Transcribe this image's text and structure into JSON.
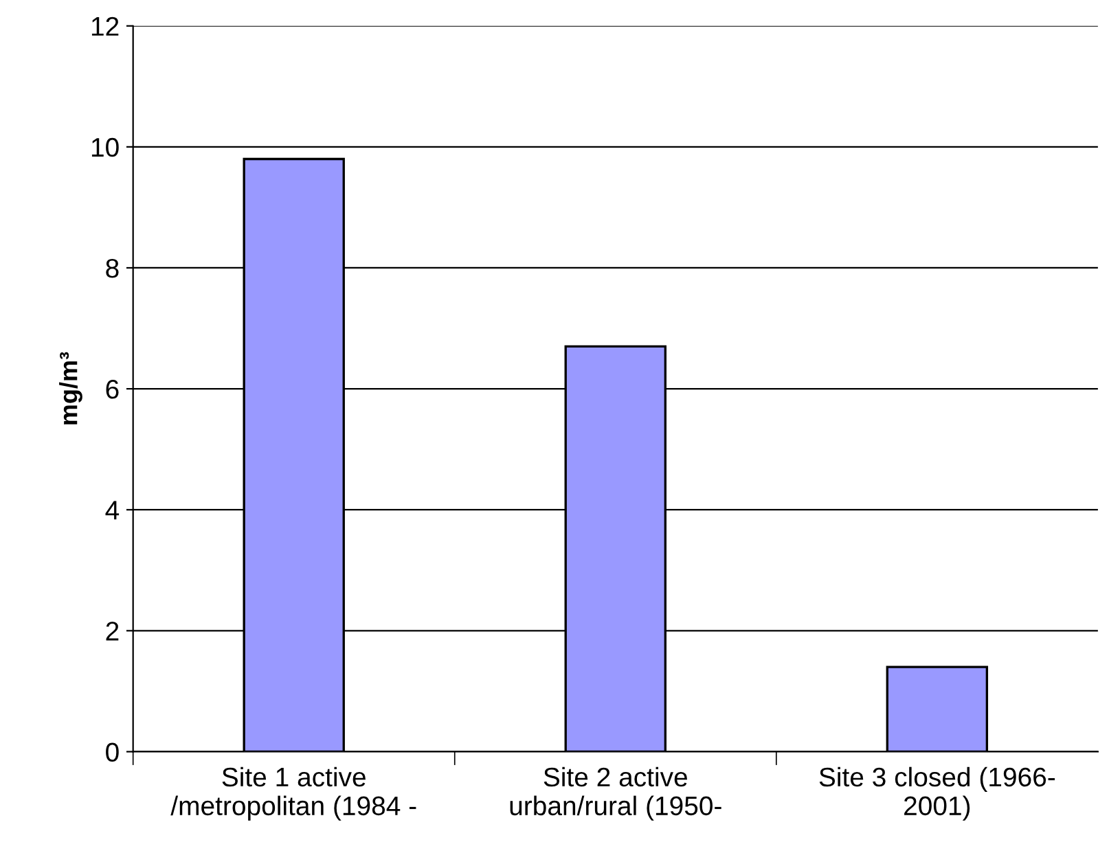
{
  "chart_data": {
    "type": "bar",
    "ylabel": "mg/m³",
    "categories": [
      "Site 1 active\n/metropolitan (1984 -",
      "Site 2 active\nurban/rural (1950-",
      "Site 3 closed (1966-\n2001)"
    ],
    "values": [
      9.8,
      6.7,
      1.4
    ],
    "color": "#9999ff",
    "ylim": [
      0,
      12
    ],
    "yticks": [
      0,
      2,
      4,
      6,
      8,
      10,
      12
    ],
    "grid": "y",
    "legend": false
  }
}
